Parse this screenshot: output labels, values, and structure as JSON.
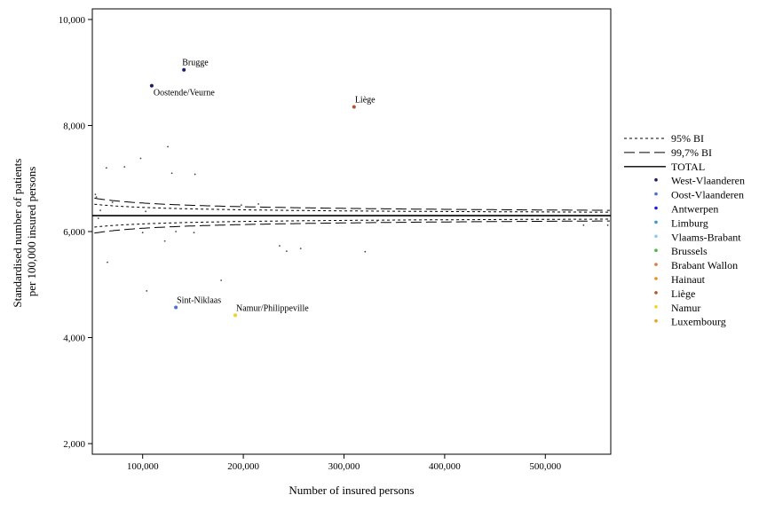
{
  "chart_data": {
    "type": "scatter",
    "xlabel": "Number of insured persons",
    "ylabel_lines": [
      "Standardised number of patients",
      "per 100,000 insured persons"
    ],
    "xlim": [
      50000,
      565000
    ],
    "ylim": [
      1800,
      10200
    ],
    "x_ticks": [
      100000,
      200000,
      300000,
      400000,
      500000
    ],
    "x_tick_labels": [
      "100,000",
      "200,000",
      "300,000",
      "400,000",
      "500,000"
    ],
    "y_ticks": [
      2000,
      4000,
      6000,
      8000,
      10000
    ],
    "y_tick_labels": [
      "2,000",
      "4,000",
      "6,000",
      "8,000",
      "10,000"
    ],
    "grid": false,
    "legend_position": "right",
    "total": 6300,
    "funnel_lines": [
      {
        "name": "95% BI",
        "style": "dotted",
        "z": 1.96,
        "x_start": 52000
      },
      {
        "name": "99,7% BI",
        "style": "dashed",
        "z": 3.0,
        "x_start": 52000
      }
    ],
    "total_line": {
      "name": "TOTAL"
    },
    "regions": [
      {
        "name": "West-Vlaanderen",
        "color": "#1a1a6e"
      },
      {
        "name": "Oost-Vlaanderen",
        "color": "#4a6fd8"
      },
      {
        "name": "Antwerpen",
        "color": "#1a1aee"
      },
      {
        "name": "Limburg",
        "color": "#3399dd"
      },
      {
        "name": "Vlaams-Brabant",
        "color": "#88ccee"
      },
      {
        "name": "Brussels",
        "color": "#44bb44"
      },
      {
        "name": "Brabant Wallon",
        "color": "#e07b39"
      },
      {
        "name": "Hainaut",
        "color": "#f08a24"
      },
      {
        "name": "Liège",
        "color": "#b5532e"
      },
      {
        "name": "Namur",
        "color": "#f2d21b"
      },
      {
        "name": "Luxembourg",
        "color": "#f0a020"
      }
    ],
    "highlighted_points": [
      {
        "label": "Brugge",
        "x": 141000,
        "y": 9050,
        "color": "#1a1a6e",
        "label_pos": "above"
      },
      {
        "label": "Oostende/Veurne",
        "x": 109000,
        "y": 8750,
        "color": "#1a1a6e",
        "label_pos": "below-right"
      },
      {
        "label": "Liège",
        "x": 310000,
        "y": 8350,
        "color": "#b5532e",
        "label_pos": "above-right"
      },
      {
        "label": "Sint-Niklaas",
        "x": 133000,
        "y": 4570,
        "color": "#4a6fd8",
        "label_pos": "above-right"
      },
      {
        "label": "Namur/Philippeville",
        "x": 192000,
        "y": 4420,
        "color": "#f2d21b",
        "label_pos": "above-right"
      }
    ],
    "other_points": [
      {
        "x": 53000,
        "y": 6700
      },
      {
        "x": 54000,
        "y": 6650
      },
      {
        "x": 56000,
        "y": 6250
      },
      {
        "x": 58000,
        "y": 6400
      },
      {
        "x": 64000,
        "y": 7200
      },
      {
        "x": 65000,
        "y": 5420
      },
      {
        "x": 70000,
        "y": 6550
      },
      {
        "x": 82000,
        "y": 7220
      },
      {
        "x": 98000,
        "y": 7380
      },
      {
        "x": 100000,
        "y": 5980
      },
      {
        "x": 103000,
        "y": 6380
      },
      {
        "x": 104000,
        "y": 4880
      },
      {
        "x": 122000,
        "y": 5820
      },
      {
        "x": 125000,
        "y": 7600
      },
      {
        "x": 129000,
        "y": 7100
      },
      {
        "x": 133000,
        "y": 6000
      },
      {
        "x": 151000,
        "y": 5980
      },
      {
        "x": 152000,
        "y": 7080
      },
      {
        "x": 178000,
        "y": 5080
      },
      {
        "x": 198000,
        "y": 6500
      },
      {
        "x": 215000,
        "y": 6520
      },
      {
        "x": 236000,
        "y": 5730
      },
      {
        "x": 243000,
        "y": 5630
      },
      {
        "x": 257000,
        "y": 5680
      },
      {
        "x": 321000,
        "y": 5620
      },
      {
        "x": 333000,
        "y": 6200
      },
      {
        "x": 538000,
        "y": 6120
      },
      {
        "x": 562000,
        "y": 6120
      }
    ]
  }
}
